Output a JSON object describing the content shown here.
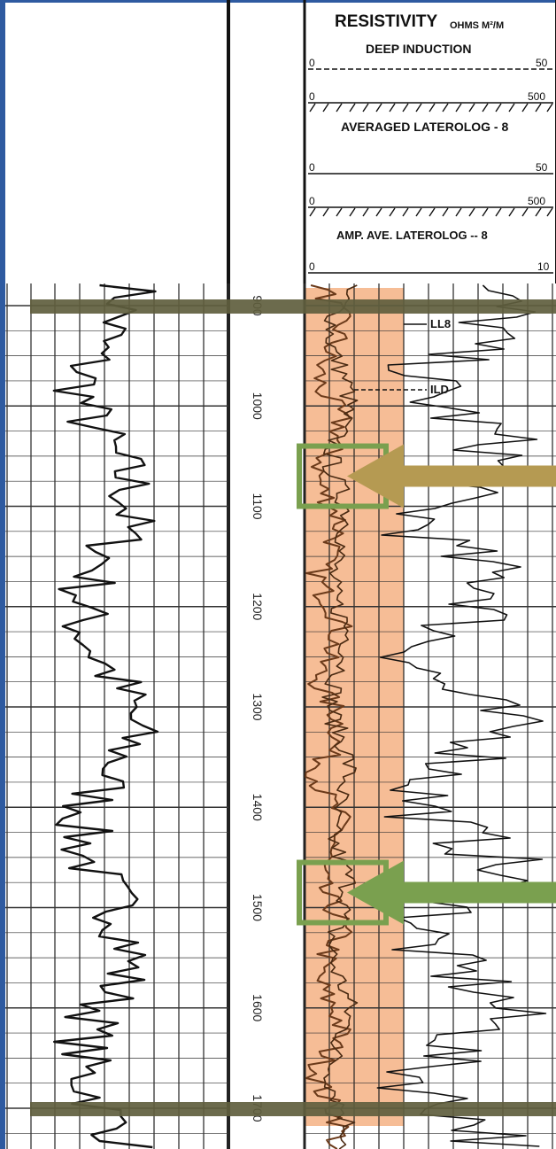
{
  "header": {
    "title": "RESISTIVITY",
    "units": "OHMS M²/M",
    "tracks": [
      {
        "name": "DEEP INDUCTION",
        "scales": [
          {
            "min": "0",
            "max": "50"
          },
          {
            "min": "0",
            "max": "500"
          }
        ]
      },
      {
        "name": "AVERAGED LATEROLOG - 8",
        "scales": [
          {
            "min": "0",
            "max": "50"
          },
          {
            "min": "0",
            "max": "500"
          }
        ]
      },
      {
        "name": "AMP. AVE. LATEROLOG -- 8",
        "scales": [
          {
            "min": "0",
            "max": "10"
          }
        ]
      }
    ]
  },
  "depths": [
    "900",
    "1000",
    "1100",
    "1200",
    "1300",
    "1400",
    "1500",
    "1600",
    "1700"
  ],
  "curve_labels": {
    "ll8": "LL8",
    "ild": "ILD"
  },
  "annotations": {
    "top_bar_depth": 900,
    "bottom_bar_depth": 1700,
    "highlight_depth_range": [
      900,
      1700
    ],
    "boxes": [
      {
        "depth_range": [
          1040,
          1100
        ],
        "arrow_color": "#b59a52"
      },
      {
        "depth_range": [
          1455,
          1515
        ],
        "arrow_color": "#7aa04f"
      }
    ]
  },
  "colors": {
    "highlight": "#f4b184",
    "box_outline": "#7aa04f",
    "bar": "#5f5e3e",
    "curve": "#111111",
    "frame": "#2e5aa0"
  }
}
